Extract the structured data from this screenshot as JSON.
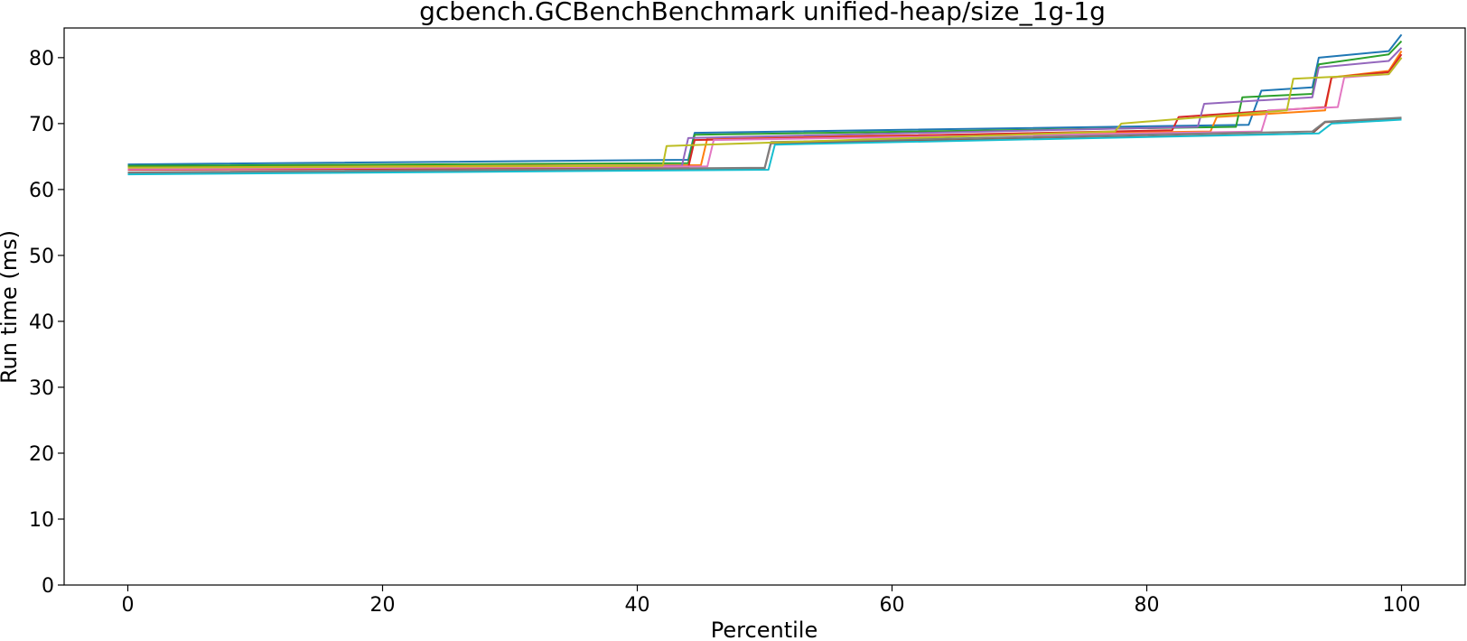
{
  "chart_data": {
    "type": "line",
    "title": "gcbench.GCBenchBenchmark unified-heap/size_1g-1g",
    "xlabel": "Percentile",
    "ylabel": "Run time (ms)",
    "xlim": [
      -5,
      105
    ],
    "ylim": [
      0,
      84.5
    ],
    "xticks": [
      0,
      20,
      40,
      60,
      80,
      100
    ],
    "yticks": [
      0,
      10,
      20,
      30,
      40,
      50,
      60,
      70,
      80
    ],
    "grid": false,
    "legend": "none",
    "series": [
      {
        "color": "#1f77b4",
        "points": [
          [
            0,
            63.8
          ],
          [
            44,
            64.5
          ],
          [
            44.5,
            68.6
          ],
          [
            88,
            69.8
          ],
          [
            89,
            75.0
          ],
          [
            93,
            75.5
          ],
          [
            93.5,
            80.0
          ],
          [
            99,
            81.0
          ],
          [
            100,
            83.5
          ]
        ]
      },
      {
        "color": "#ff7f0e",
        "points": [
          [
            0,
            63.4
          ],
          [
            45,
            63.7
          ],
          [
            45.5,
            67.8
          ],
          [
            85,
            68.8
          ],
          [
            85.5,
            71.0
          ],
          [
            94,
            72.0
          ],
          [
            94.5,
            77.0
          ],
          [
            99,
            78.0
          ],
          [
            100,
            81.0
          ]
        ]
      },
      {
        "color": "#2ca02c",
        "points": [
          [
            0,
            63.6
          ],
          [
            44,
            64.0
          ],
          [
            44.5,
            68.3
          ],
          [
            87,
            69.5
          ],
          [
            87.5,
            74.0
          ],
          [
            93,
            74.5
          ],
          [
            93.5,
            79.0
          ],
          [
            99,
            80.5
          ],
          [
            100,
            82.5
          ]
        ]
      },
      {
        "color": "#d62728",
        "points": [
          [
            0,
            63.0
          ],
          [
            44,
            63.3
          ],
          [
            44.5,
            67.5
          ],
          [
            82,
            69.0
          ],
          [
            82.5,
            71.0
          ],
          [
            94,
            72.5
          ],
          [
            94.5,
            77.0
          ],
          [
            99,
            77.8
          ],
          [
            100,
            80.5
          ]
        ]
      },
      {
        "color": "#9467bd",
        "points": [
          [
            0,
            63.2
          ],
          [
            43.5,
            63.6
          ],
          [
            44,
            67.8
          ],
          [
            84,
            69.5
          ],
          [
            84.5,
            73.0
          ],
          [
            93,
            74.0
          ],
          [
            93.5,
            78.5
          ],
          [
            99,
            79.5
          ],
          [
            100,
            81.5
          ]
        ]
      },
      {
        "color": "#8c564b",
        "points": [
          [
            0,
            62.5
          ],
          [
            50,
            63.2
          ],
          [
            50.5,
            67.0
          ],
          [
            93,
            68.5
          ],
          [
            94,
            70.2
          ],
          [
            100,
            70.8
          ]
        ]
      },
      {
        "color": "#e377c2",
        "points": [
          [
            0,
            63.1
          ],
          [
            45.5,
            63.5
          ],
          [
            46,
            67.5
          ],
          [
            89,
            68.8
          ],
          [
            89.5,
            72.0
          ],
          [
            95,
            72.5
          ],
          [
            95.5,
            77.0
          ],
          [
            99,
            77.5
          ],
          [
            100,
            80.0
          ]
        ]
      },
      {
        "color": "#7f7f7f",
        "points": [
          [
            0,
            62.6
          ],
          [
            50,
            63.3
          ],
          [
            50.5,
            67.2
          ],
          [
            93,
            68.8
          ],
          [
            94,
            70.3
          ],
          [
            100,
            70.9
          ]
        ]
      },
      {
        "color": "#bcbd22",
        "points": [
          [
            0,
            63.3
          ],
          [
            42,
            63.6
          ],
          [
            42.3,
            66.6
          ],
          [
            77.5,
            68.8
          ],
          [
            78,
            70.0
          ],
          [
            91,
            72.0
          ],
          [
            91.5,
            76.8
          ],
          [
            99,
            77.5
          ],
          [
            100,
            80.0
          ]
        ]
      },
      {
        "color": "#17becf",
        "points": [
          [
            0,
            62.3
          ],
          [
            50.3,
            63.0
          ],
          [
            50.8,
            66.8
          ],
          [
            93.5,
            68.5
          ],
          [
            94.5,
            70.0
          ],
          [
            100,
            70.6
          ]
        ]
      }
    ]
  }
}
